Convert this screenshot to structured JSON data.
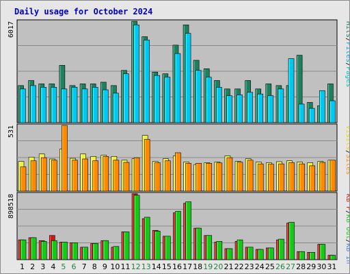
{
  "chart_data": {
    "type": "bar",
    "title": "Daily usage for October 2024",
    "categories": [
      "1",
      "2",
      "3",
      "4",
      "5",
      "6",
      "7",
      "8",
      "9",
      "10",
      "11",
      "12",
      "13",
      "14",
      "15",
      "16",
      "17",
      "18",
      "19",
      "20",
      "21",
      "22",
      "23",
      "24",
      "25",
      "26",
      "27",
      "28",
      "29",
      "30",
      "31"
    ],
    "weekend_days": [
      "5",
      "6",
      "12",
      "13",
      "19",
      "20",
      "26",
      "27"
    ],
    "colors": {
      "title": "#0000c0",
      "panel": "#c0c0c0",
      "hits": "#1f8060",
      "files": "#00c8f0",
      "pages": "#00c0c0",
      "visits": "#f0f040",
      "sites": "#ff8a00",
      "kb_in": "#d01818",
      "kb_out": "#18c818",
      "weekend_text": "#208040",
      "weekday_text": "#000000"
    },
    "panels": [
      {
        "max_label": "6017",
        "ymax": 6017,
        "legend": [
          {
            "text": "Hits",
            "color": "#1f8060"
          },
          {
            "text": "/",
            "color": "#000000"
          },
          {
            "text": "Files",
            "color": "#00a0e0"
          },
          {
            "text": "/",
            "color": "#000000"
          },
          {
            "text": "Pages",
            "color": "#00c0c0"
          }
        ],
        "series": [
          {
            "name": "Hits",
            "values": [
              2200,
              2500,
              2300,
              2300,
              3400,
              2200,
              2300,
              2300,
              2400,
              2200,
              3100,
              6017,
              5100,
              3000,
              2900,
              4600,
              5800,
              3700,
              3200,
              2500,
              2000,
              2000,
              2500,
              2000,
              2300,
              2200,
              2200,
              4000,
              1200,
              1000,
              2300
            ]
          },
          {
            "name": "Files",
            "values": [
              2000,
              2200,
              2100,
              2100,
              2000,
              2100,
              2000,
              2100,
              1950,
              1750,
              2900,
              5800,
              4900,
              2800,
              2700,
              4100,
              5300,
              3100,
              2700,
              2100,
              1600,
              1650,
              1800,
              1700,
              1600,
              2000,
              3800,
              1100,
              850,
              1900,
              1300
            ]
          },
          {
            "name": "Pages",
            "values": [
              1800,
              1900,
              1800,
              1900,
              1800,
              1800,
              1700,
              1800,
              1700,
              1600,
              2700,
              5500,
              4700,
              2600,
              2500,
              3800,
              5000,
              2900,
              2500,
              1900,
              1500,
              1500,
              1600,
              1500,
              1500,
              1800,
              3600,
              950,
              750,
              1700,
              1200
            ]
          }
        ]
      },
      {
        "max_label": "531",
        "ymax": 531,
        "legend": [
          {
            "text": "Visits",
            "color": "#e8d800"
          },
          {
            "text": "/",
            "color": "#000000"
          },
          {
            "text": "Sites",
            "color": "#ff8a00"
          }
        ],
        "series": [
          {
            "name": "Visits",
            "values": [
              240,
              275,
              300,
              260,
              340,
              265,
              300,
              280,
              290,
              280,
              250,
              262,
              450,
              240,
              262,
              285,
              235,
              215,
              230,
              235,
              285,
              240,
              262,
              235,
              230,
              238,
              245,
              235,
              230,
              240,
              250
            ]
          },
          {
            "name": "Sites",
            "values": [
              196,
              245,
              270,
              250,
              531,
              250,
              260,
              245,
              280,
              250,
              232,
              270,
              418,
              230,
              245,
              310,
              225,
              225,
              225,
              228,
              270,
              234,
              250,
              220,
              218,
              220,
              230,
              220,
              205,
              232,
              250
            ]
          }
        ]
      },
      {
        "max_label": "898518",
        "ymax": 898518,
        "legend": [
          {
            "text": "KB F",
            "color": "#d01818"
          },
          {
            "text": "/",
            "color": "#000000"
          },
          {
            "text": "KB Out",
            "color": "#18c818"
          },
          {
            "text": "/",
            "color": "#000000"
          },
          {
            "text": "KB In",
            "color": "#4080e0"
          }
        ],
        "series": [
          {
            "name": "KB F",
            "values": [
              270000,
              300000,
              260000,
              330000,
              240000,
              230000,
              170000,
              220000,
              260000,
              170000,
              380000,
              900000,
              560000,
              400000,
              320000,
              640000,
              770000,
              430000,
              330000,
              240000,
              150000,
              250000,
              170000,
              140000,
              160000,
              270000,
              500000,
              110000,
              100000,
              210000,
              60000
            ]
          },
          {
            "name": "KB Out",
            "values": [
              270000,
              300000,
              250000,
              260000,
              240000,
              230000,
              170000,
              220000,
              260000,
              180000,
              380000,
              880000,
              580000,
              390000,
              320000,
              660000,
              790000,
              430000,
              330000,
              250000,
              150000,
              270000,
              170000,
              140000,
              160000,
              280000,
              510000,
              110000,
              100000,
              210000,
              60000
            ]
          }
        ]
      }
    ],
    "ylim_min": 0,
    "grid": "horizontal",
    "legend_position": "right-vertical"
  }
}
